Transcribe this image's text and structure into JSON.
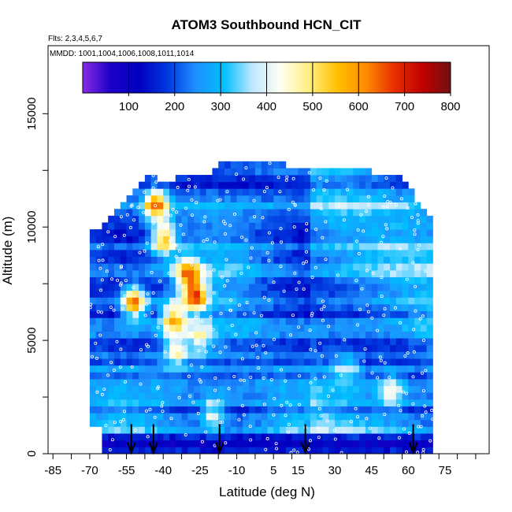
{
  "chart_data": {
    "type": "heatmap",
    "title": "ATOM3 Southbound HCN_CIT",
    "subtitle_flights": "Flts: 2,3,4,5,6,7",
    "subtitle_dates": "MMDD: 1001,1004,1006,1008,1011,1014",
    "xlabel": "Latitude (deg N)",
    "ylabel": "Altitude (m)",
    "xlim": [
      -87,
      93
    ],
    "ylim": [
      0,
      18000
    ],
    "x_tick_labels": [
      "-85",
      "-70",
      "-55",
      "-40",
      "-25",
      "-10",
      "5",
      "15",
      "30",
      "45",
      "60",
      "75"
    ],
    "x_tick_values": [
      -85,
      -70,
      -55,
      -40,
      -25,
      -10,
      5,
      15,
      30,
      45,
      60,
      75
    ],
    "y_tick_labels": [
      "0",
      "5000",
      "10000",
      "15000"
    ],
    "y_tick_values": [
      0,
      5000,
      10000,
      15000
    ],
    "colorbar": {
      "min": 0,
      "max": 800,
      "tick_labels": [
        "100",
        "200",
        "300",
        "400",
        "500",
        "600",
        "700",
        "800"
      ],
      "tick_values": [
        100,
        200,
        300,
        400,
        500,
        600,
        700,
        800
      ],
      "colors": [
        "#8a2be2",
        "#1a00c8",
        "#0000c0",
        "#0038e0",
        "#1e90ff",
        "#00bfff",
        "#bfe8ff",
        "#fffff0",
        "#ffef80",
        "#ffc000",
        "#ff8c00",
        "#e83000",
        "#c00000",
        "#701010"
      ]
    },
    "profile_markers_lat": [
      -53,
      -44,
      -17,
      18,
      62
    ],
    "coverage": {
      "lat_range": [
        -70,
        70
      ],
      "alt_range": [
        0,
        13000
      ]
    },
    "hotspots": [
      {
        "lat": -43,
        "alt": 11000,
        "value": 620
      },
      {
        "lat": -40,
        "alt": 9500,
        "value": 600
      },
      {
        "lat": -30,
        "alt": 8000,
        "value": 560
      },
      {
        "lat": -27,
        "alt": 7000,
        "value": 650
      },
      {
        "lat": -52,
        "alt": 6700,
        "value": 680
      },
      {
        "lat": -36,
        "alt": 6000,
        "value": 560
      },
      {
        "lat": -25,
        "alt": 5000,
        "value": 450
      },
      {
        "lat": -35,
        "alt": 4500,
        "value": 480
      },
      {
        "lat": -20,
        "alt": 1800,
        "value": 470
      },
      {
        "lat": 53,
        "alt": 2800,
        "value": 450
      },
      {
        "lat": 35,
        "alt": 3800,
        "value": 400
      }
    ]
  }
}
